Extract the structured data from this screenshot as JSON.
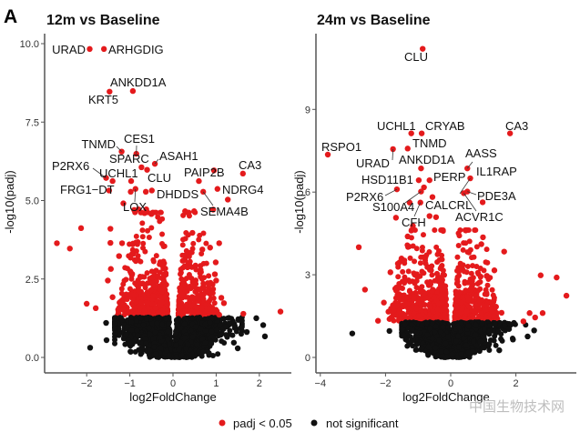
{
  "panel_letter": "A",
  "legend": {
    "items": [
      {
        "label": "padj < 0.05",
        "color": "#e41a1c"
      },
      {
        "label": "not significant",
        "color": "#111111"
      }
    ],
    "position": "bottom"
  },
  "watermark": "中国生物技术网",
  "chart_data": [
    {
      "type": "scatter",
      "title": "12m vs Baseline",
      "xlabel": "log2FoldChange",
      "ylabel": "-log10(padj)",
      "xlim": [
        -2.95,
        2.74
      ],
      "ylim": [
        -0.5,
        10.8
      ],
      "xticks": [
        "−2",
        "−1",
        "0",
        "1",
        "2"
      ],
      "xtick_values": [
        -2,
        -1,
        0,
        1,
        2
      ],
      "yticks": [
        "0.0",
        "2.5",
        "5.0",
        "7.5",
        "10.0"
      ],
      "ytick_values": [
        0,
        2.5,
        5,
        7.5,
        10
      ],
      "grid": false,
      "labeled": [
        {
          "gene": "URAD",
          "x": -1.93,
          "y": 9.83
        },
        {
          "gene": "ARHGDIG",
          "x": -1.6,
          "y": 9.83
        },
        {
          "gene": "ANKDD1A",
          "x": -0.93,
          "y": 8.49
        },
        {
          "gene": "KRT5",
          "x": -1.47,
          "y": 8.47
        },
        {
          "gene": "TNMD",
          "x": -1.19,
          "y": 6.56
        },
        {
          "gene": "CES1",
          "x": -0.85,
          "y": 6.49
        },
        {
          "gene": "SPARC",
          "x": -0.73,
          "y": 6.06
        },
        {
          "gene": "ASAH1",
          "x": -0.42,
          "y": 6.17
        },
        {
          "gene": "P2RX6",
          "x": -1.55,
          "y": 5.72
        },
        {
          "gene": "UCHL1",
          "x": -1.4,
          "y": 5.62
        },
        {
          "gene": "CLU",
          "x": -0.6,
          "y": 5.98
        },
        {
          "gene": "FRG1−DT",
          "x": -1.48,
          "y": 5.32
        },
        {
          "gene": "LOX",
          "x": -0.87,
          "y": 5.37
        },
        {
          "gene": "DHDDS",
          "x": -0.49,
          "y": 5.32
        },
        {
          "gene": "PAIP2B",
          "x": 0.6,
          "y": 5.62
        },
        {
          "gene": "CA3",
          "x": 1.62,
          "y": 5.86
        },
        {
          "gene": "NDRG4",
          "x": 1.03,
          "y": 5.37
        },
        {
          "gene": "SEMA4B",
          "x": 0.7,
          "y": 5.28
        }
      ],
      "points_significant": [
        [
          -0.97,
          5.62
        ],
        [
          -0.98,
          5.28
        ],
        [
          -0.63,
          5.28
        ],
        [
          -1.15,
          4.91
        ],
        [
          0.95,
          5.96
        ],
        [
          1.27,
          5.03
        ],
        [
          0.93,
          4.71
        ],
        [
          0.28,
          4.66
        ],
        [
          0.49,
          4.66
        ],
        [
          -0.9,
          4.7
        ],
        [
          -0.8,
          4.72
        ],
        [
          -0.62,
          4.72
        ],
        [
          -0.66,
          4.6
        ],
        [
          -0.5,
          4.57
        ],
        [
          -0.74,
          4.62
        ],
        [
          -2.69,
          3.64
        ],
        [
          -2.39,
          3.47
        ],
        [
          -2.13,
          4.12
        ],
        [
          -1.45,
          4.1
        ],
        [
          -1.45,
          3.65
        ],
        [
          -2.0,
          1.71
        ],
        [
          -1.79,
          1.57
        ],
        [
          -1.51,
          2.45
        ],
        [
          -1.44,
          2.82
        ],
        [
          -1.25,
          3.23
        ],
        [
          -1.4,
          1.92
        ],
        [
          -1.27,
          1.52
        ],
        [
          -1.15,
          1.52
        ],
        [
          -1.18,
          3.64
        ],
        [
          -0.99,
          2.74
        ],
        [
          1.07,
          3.64
        ],
        [
          0.86,
          3.5
        ],
        [
          0.68,
          3.44
        ],
        [
          0.45,
          3.97
        ],
        [
          0.99,
          3.03
        ],
        [
          0.97,
          2.65
        ],
        [
          1.0,
          2.45
        ],
        [
          1.12,
          1.9
        ],
        [
          1.18,
          1.73
        ],
        [
          1.07,
          1.36
        ],
        [
          1.63,
          1.39
        ],
        [
          2.49,
          1.46
        ],
        [
          0.64,
          2.79
        ]
      ],
      "points_not_significant": [
        [
          -1.92,
          0.31
        ],
        [
          -1.55,
          1.1
        ],
        [
          -1.54,
          0.55
        ],
        [
          1.43,
          1.0
        ],
        [
          1.93,
          1.25
        ],
        [
          2.09,
          1.03
        ],
        [
          2.13,
          0.67
        ],
        [
          1.71,
          0.81
        ],
        [
          1.41,
          0.47
        ],
        [
          1.5,
          0.29
        ],
        [
          -0.98,
          0.18
        ]
      ]
    },
    {
      "type": "scatter",
      "title": "24m vs Baseline",
      "xlabel": "log2FoldChange",
      "ylabel": "-log10(padj)",
      "xlim": [
        -4.13,
        3.85
      ],
      "ylim": [
        -0.56,
        11.7
      ],
      "xticks": [
        "−4",
        "−2",
        "0",
        "2"
      ],
      "xtick_values": [
        -4,
        -2,
        0,
        2
      ],
      "yticks": [
        "0",
        "3",
        "6",
        "9"
      ],
      "ytick_values": [
        0,
        3,
        6,
        9
      ],
      "grid": false,
      "labeled": [
        {
          "gene": "CLU",
          "x": -0.86,
          "y": 11.2
        },
        {
          "gene": "UCHL1",
          "x": -1.21,
          "y": 8.13
        },
        {
          "gene": "CRYAB",
          "x": -0.89,
          "y": 8.13
        },
        {
          "gene": "CA3",
          "x": 1.82,
          "y": 8.13
        },
        {
          "gene": "RSPO1",
          "x": -3.77,
          "y": 7.36
        },
        {
          "gene": "TNMD",
          "x": -1.32,
          "y": 7.58
        },
        {
          "gene": "URAD",
          "x": -1.77,
          "y": 7.56
        },
        {
          "gene": "ANKDD1A",
          "x": -0.91,
          "y": 6.86
        },
        {
          "gene": "AASS",
          "x": 0.51,
          "y": 6.86
        },
        {
          "gene": "IL1RAP",
          "x": 0.6,
          "y": 6.5
        },
        {
          "gene": "HSD11B1",
          "x": -0.98,
          "y": 6.43
        },
        {
          "gene": "PERP",
          "x": -0.65,
          "y": 6.43
        },
        {
          "gene": "P2RX6",
          "x": -1.65,
          "y": 6.1
        },
        {
          "gene": "S100A4",
          "x": -0.91,
          "y": 6.02
        },
        {
          "gene": "CALCRL",
          "x": -0.82,
          "y": 6.17
        },
        {
          "gene": "PDE3A",
          "x": 0.51,
          "y": 6.02
        },
        {
          "gene": "ACVR1C",
          "x": 0.4,
          "y": 5.96
        },
        {
          "gene": "CFH",
          "x": -0.93,
          "y": 5.62
        }
      ],
      "points_significant": [
        [
          0.98,
          5.63
        ],
        [
          -1.68,
          5.07
        ],
        [
          -1.26,
          5.62
        ],
        [
          -0.56,
          5.82
        ],
        [
          -0.65,
          5.13
        ],
        [
          -0.45,
          5.09
        ],
        [
          -1.16,
          4.77
        ],
        [
          -2.82,
          4.0
        ],
        [
          -2.63,
          2.46
        ],
        [
          -2.23,
          1.33
        ],
        [
          -2.05,
          1.99
        ],
        [
          -1.85,
          3.09
        ],
        [
          -1.91,
          1.66
        ],
        [
          -1.65,
          1.88
        ],
        [
          -1.59,
          2.3
        ],
        [
          2.76,
          2.98
        ],
        [
          3.25,
          2.9
        ],
        [
          3.55,
          2.24
        ],
        [
          1.64,
          3.84
        ],
        [
          1.34,
          3.16
        ],
        [
          1.11,
          2.96
        ],
        [
          2.42,
          1.61
        ],
        [
          2.82,
          1.61
        ],
        [
          2.59,
          1.45
        ],
        [
          2.23,
          1.31
        ],
        [
          1.56,
          1.62
        ],
        [
          1.39,
          1.84
        ],
        [
          0.99,
          4.36
        ],
        [
          0.94,
          4.11
        ],
        [
          -1.32,
          4.39
        ],
        [
          -1.51,
          3.59
        ],
        [
          0.65,
          2.57
        ]
      ],
      "points_not_significant": [
        [
          -3.02,
          0.87
        ],
        [
          -1.88,
          0.96
        ],
        [
          2.56,
          0.98
        ],
        [
          2.36,
          0.76
        ],
        [
          1.91,
          0.65
        ],
        [
          1.49,
          0.26
        ],
        [
          1.79,
          1.03
        ],
        [
          1.94,
          1.25
        ],
        [
          -1.42,
          1.2
        ],
        [
          -1.44,
          0.8
        ]
      ]
    }
  ]
}
